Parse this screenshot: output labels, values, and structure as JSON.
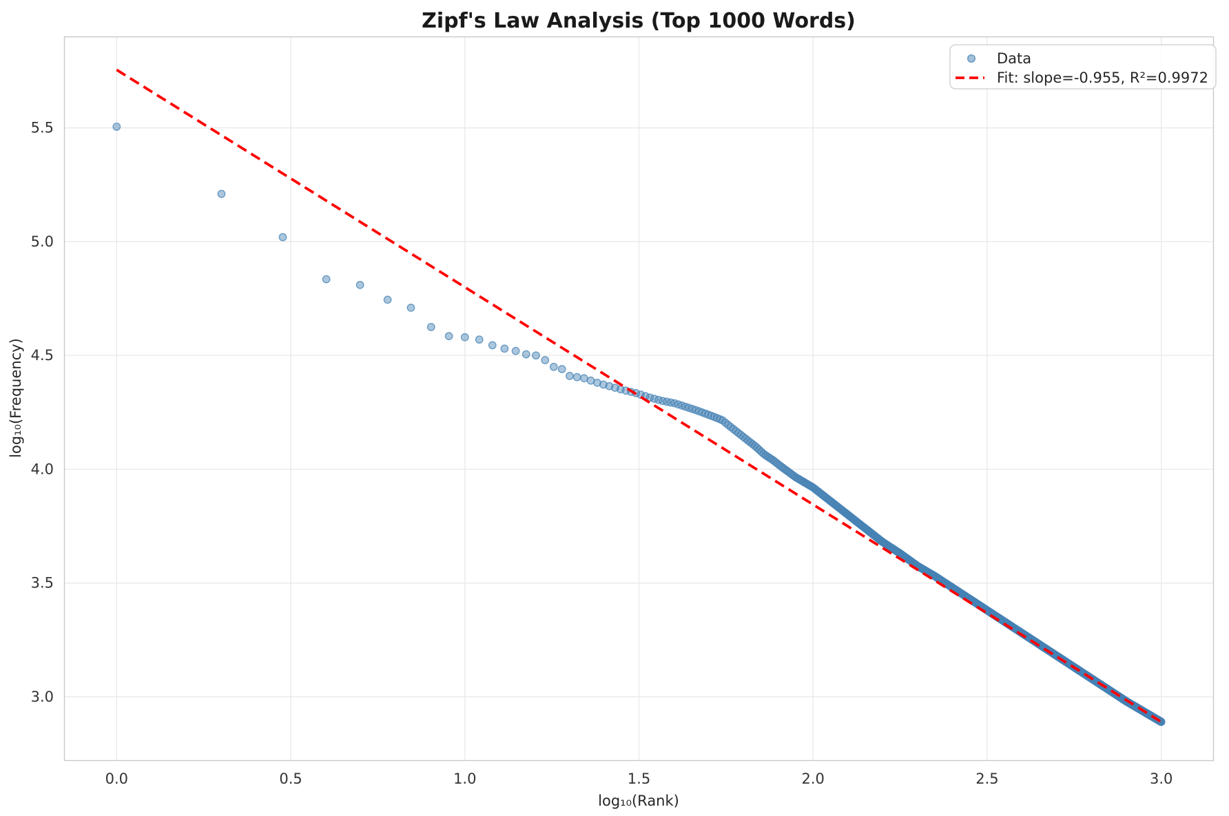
{
  "chart_data": {
    "type": "scatter",
    "title": "Zipf's Law Analysis (Top 1000 Words)",
    "xlabel": "log₁₀(Rank)",
    "ylabel": "log₁₀(Frequency)",
    "xlim": [
      -0.15,
      3.15
    ],
    "ylim": [
      2.72,
      5.9
    ],
    "x_ticks": [
      0.0,
      0.5,
      1.0,
      1.5,
      2.0,
      2.5,
      3.0
    ],
    "x_tick_labels": [
      "0.0",
      "0.5",
      "1.0",
      "1.5",
      "2.0",
      "2.5",
      "3.0"
    ],
    "y_ticks": [
      3.0,
      3.5,
      4.0,
      4.5,
      5.0,
      5.5
    ],
    "y_tick_labels": [
      "3.0",
      "3.5",
      "4.0",
      "4.5",
      "5.0",
      "5.5"
    ],
    "grid": true,
    "legend": {
      "position": "upper right",
      "entries": [
        {
          "label": "Data",
          "type": "marker",
          "color": "#4682B4"
        },
        {
          "label": "Fit: slope=-0.955, R²=0.9972",
          "type": "dashed-line",
          "color": "#FF0000"
        }
      ]
    },
    "series": [
      {
        "name": "Data",
        "type": "scatter",
        "color": "#4682B4",
        "alpha": 0.5,
        "n_points": 1000,
        "x_definition": "x = log10(rank) for rank = 1..1000",
        "anchor_points": [
          [
            0.0,
            5.505
          ],
          [
            0.301,
            5.21
          ],
          [
            0.477,
            5.02
          ],
          [
            0.602,
            4.835
          ],
          [
            0.699,
            4.81
          ],
          [
            0.778,
            4.745
          ],
          [
            0.845,
            4.71
          ],
          [
            0.903,
            4.625
          ],
          [
            0.954,
            4.585
          ],
          [
            1.0,
            4.58
          ],
          [
            1.041,
            4.57
          ],
          [
            1.079,
            4.545
          ],
          [
            1.114,
            4.53
          ],
          [
            1.146,
            4.52
          ],
          [
            1.176,
            4.505
          ],
          [
            1.204,
            4.5
          ],
          [
            1.23,
            4.48
          ],
          [
            1.255,
            4.45
          ],
          [
            1.279,
            4.44
          ],
          [
            1.301,
            4.41
          ],
          [
            1.342,
            4.4
          ],
          [
            1.38,
            4.38
          ],
          [
            1.415,
            4.365
          ],
          [
            1.45,
            4.35
          ],
          [
            1.49,
            4.335
          ],
          [
            1.531,
            4.315
          ],
          [
            1.568,
            4.3
          ],
          [
            1.602,
            4.29
          ],
          [
            1.633,
            4.275
          ],
          [
            1.663,
            4.26
          ],
          [
            1.69,
            4.245
          ],
          [
            1.716,
            4.23
          ],
          [
            1.74,
            4.215
          ],
          [
            1.76,
            4.19
          ],
          [
            1.785,
            4.16
          ],
          [
            1.81,
            4.13
          ],
          [
            1.835,
            4.1
          ],
          [
            1.86,
            4.065
          ],
          [
            1.885,
            4.04
          ],
          [
            1.91,
            4.01
          ],
          [
            1.95,
            3.965
          ],
          [
            2.0,
            3.92
          ],
          [
            2.05,
            3.86
          ],
          [
            2.1,
            3.8
          ],
          [
            2.15,
            3.74
          ],
          [
            2.2,
            3.68
          ],
          [
            2.25,
            3.63
          ],
          [
            2.3,
            3.575
          ],
          [
            2.35,
            3.53
          ],
          [
            2.4,
            3.48
          ],
          [
            2.45,
            3.43
          ],
          [
            2.5,
            3.38
          ],
          [
            2.55,
            3.33
          ],
          [
            2.6,
            3.28
          ],
          [
            2.65,
            3.23
          ],
          [
            2.7,
            3.18
          ],
          [
            2.75,
            3.13
          ],
          [
            2.8,
            3.08
          ],
          [
            2.85,
            3.03
          ],
          [
            2.9,
            2.98
          ],
          [
            2.95,
            2.935
          ],
          [
            3.0,
            2.89
          ]
        ]
      },
      {
        "name": "Fit",
        "type": "line",
        "style": "dashed",
        "color": "#FF0000",
        "slope": -0.955,
        "intercept": 5.755,
        "r_squared": 0.9972,
        "x_range": [
          0.0,
          3.0
        ]
      }
    ],
    "colors": {
      "scatter": "#4682B4",
      "fit_line": "#FF0000",
      "grid": "#E9E9E9",
      "spine": "#C9C9C9",
      "text": "#262626",
      "background": "#FFFFFF"
    }
  }
}
